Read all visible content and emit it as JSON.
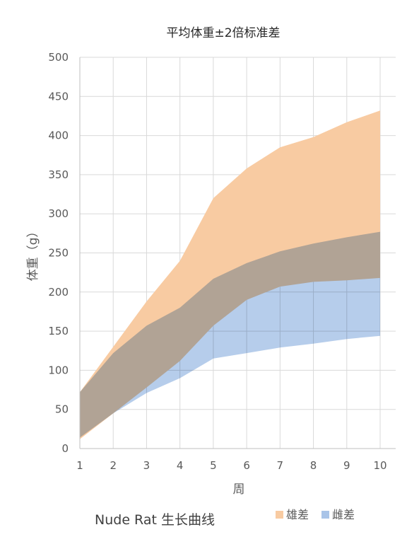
{
  "chart_data": {
    "type": "area",
    "title": "平均体重±2倍标准差",
    "xlabel": "周",
    "ylabel": "体重（g）",
    "caption": "Nude Rat 生长曲线",
    "x": [
      1,
      2,
      3,
      4,
      5,
      6,
      7,
      8,
      9,
      10
    ],
    "ylim": [
      0,
      500
    ],
    "yticks": [
      0,
      50,
      100,
      150,
      200,
      250,
      300,
      350,
      400,
      450,
      500
    ],
    "grid": true,
    "legend_position": "bottom-right",
    "series": [
      {
        "name": "雄差",
        "color": "#f8cba2",
        "lower": [
          12,
          45,
          78,
          112,
          157,
          190,
          207,
          213,
          215,
          218
        ],
        "upper": [
          72,
          130,
          188,
          240,
          320,
          358,
          385,
          398,
          417,
          432
        ]
      },
      {
        "name": "雌差",
        "color": "#a9c4e8",
        "lower": [
          14,
          45,
          71,
          90,
          115,
          122,
          129,
          134,
          140,
          144
        ],
        "upper": [
          72,
          122,
          157,
          180,
          217,
          237,
          252,
          262,
          270,
          277
        ]
      }
    ]
  }
}
